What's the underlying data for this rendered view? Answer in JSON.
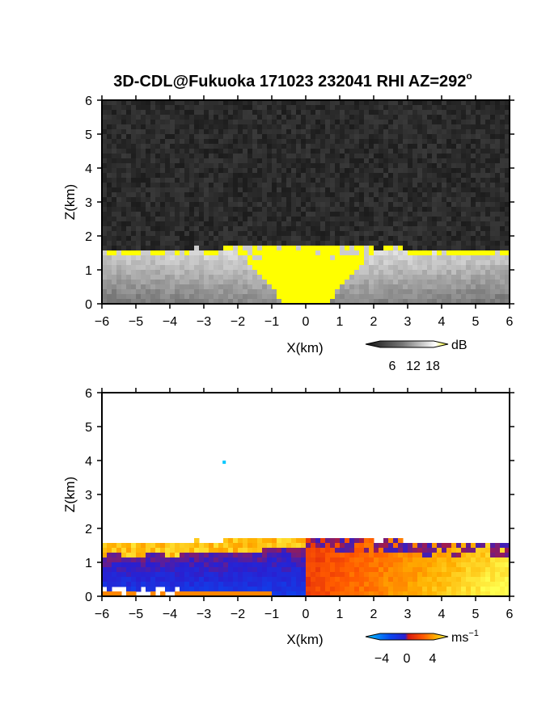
{
  "figure": {
    "title": "3D-CDL@Fukuoka 171023 232041 RHI AZ=292",
    "title_degree_symbol": "o"
  },
  "chart_data": [
    {
      "type": "heatmap",
      "name": "reflectivity",
      "xlabel": "X(km)",
      "ylabel": "Z(km)",
      "xlim": [
        -6,
        6
      ],
      "ylim": [
        0,
        6
      ],
      "xticks": [
        "-6",
        "-5",
        "-4",
        "-3",
        "-2",
        "-1",
        "0",
        "1",
        "2",
        "3",
        "4",
        "5",
        "6"
      ],
      "yticks": [
        "0",
        "1",
        "2",
        "3",
        "4",
        "5",
        "6"
      ],
      "colorbar": {
        "unit": "dB",
        "ticks": [
          "6",
          "12",
          "18"
        ],
        "colors": [
          "#111111",
          "#444444",
          "#777777",
          "#aaaaaa",
          "#dddddd",
          "#ffffff",
          "#ffff00"
        ]
      },
      "features": {
        "noise_floor_color": "#262626",
        "saturated_color": "#ffff00",
        "echo_top_center_km": 1.75,
        "echo_top_edge_km": 1.55
      }
    },
    {
      "type": "heatmap",
      "name": "doppler_velocity",
      "xlabel": "X(km)",
      "ylabel": "Z(km)",
      "xlim": [
        -6,
        6
      ],
      "ylim": [
        0,
        6
      ],
      "xticks": [
        "-6",
        "-5",
        "-4",
        "-3",
        "-2",
        "-1",
        "0",
        "1",
        "2",
        "3",
        "4",
        "5",
        "6"
      ],
      "yticks": [
        "0",
        "1",
        "2",
        "3",
        "4",
        "5",
        "6"
      ],
      "colorbar": {
        "unit": "ms",
        "unit_exponent": "−1",
        "ticks": [
          "−4",
          "0",
          "4"
        ],
        "colors": [
          "#00c8ff",
          "#0a46f0",
          "#2a1fd0",
          "#d81a10",
          "#ff5a00",
          "#ffb000",
          "#ffff50"
        ]
      },
      "features": {
        "isolated_point": {
          "x": -2.4,
          "z": 3.95
        }
      }
    }
  ]
}
